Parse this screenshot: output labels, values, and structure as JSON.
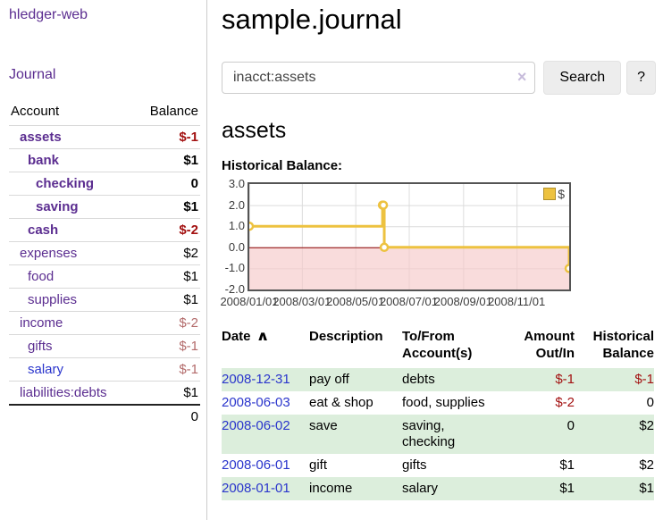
{
  "colors": {
    "link_purple": "#5b2d90",
    "link_blue": "#2a35cc",
    "negative_strong": "#a31111",
    "negative_muted": "#b36b6b",
    "row_stripe_green": "#dceedc",
    "chart_line_gold": "#edc240",
    "chart_zero_line": "#8b0000",
    "chart_negative_fill": "#f6caca",
    "chart_grid": "#dcdcdc"
  },
  "sidebar": {
    "brand": "hledger-web",
    "journal_link": "Journal",
    "accounts": {
      "header": {
        "account": "Account",
        "balance": "Balance"
      },
      "rows": [
        {
          "name": "assets",
          "balance": "$-1",
          "indent": 1,
          "bold": true,
          "name_style": "purple",
          "balance_style": "negative_strong"
        },
        {
          "name": "bank",
          "balance": "$1",
          "indent": 2,
          "bold": true,
          "name_style": "purple",
          "balance_style": "normal"
        },
        {
          "name": "checking",
          "balance": "0",
          "indent": 3,
          "bold": true,
          "name_style": "purple",
          "balance_style": "normal"
        },
        {
          "name": "saving",
          "balance": "$1",
          "indent": 3,
          "bold": true,
          "name_style": "purple",
          "balance_style": "normal"
        },
        {
          "name": "cash",
          "balance": "$-2",
          "indent": 2,
          "bold": true,
          "name_style": "purple",
          "balance_style": "negative_strong"
        },
        {
          "name": "expenses",
          "balance": "$2",
          "indent": 1,
          "bold": false,
          "name_style": "purple",
          "balance_style": "normal"
        },
        {
          "name": "food",
          "balance": "$1",
          "indent": 2,
          "bold": false,
          "name_style": "purple",
          "balance_style": "normal"
        },
        {
          "name": "supplies",
          "balance": "$1",
          "indent": 2,
          "bold": false,
          "name_style": "purple",
          "balance_style": "normal"
        },
        {
          "name": "income",
          "balance": "$-2",
          "indent": 1,
          "bold": false,
          "name_style": "purple",
          "balance_style": "negative_muted"
        },
        {
          "name": "gifts",
          "balance": "$-1",
          "indent": 2,
          "bold": false,
          "name_style": "purple",
          "balance_style": "negative_muted"
        },
        {
          "name": "salary",
          "balance": "$-1",
          "indent": 2,
          "bold": false,
          "name_style": "blue",
          "balance_style": "negative_muted"
        },
        {
          "name": "liabilities:debts",
          "balance": "$1",
          "indent": 1,
          "bold": false,
          "name_style": "purple",
          "balance_style": "normal"
        }
      ],
      "total": "0"
    }
  },
  "main": {
    "title": "sample.journal",
    "search": {
      "value": "inacct:assets",
      "clear_icon": "×",
      "search_button": "Search",
      "help_button": "?"
    },
    "account_heading": "assets",
    "section_label": "Historical Balance:"
  },
  "chart_data": {
    "type": "line",
    "step": true,
    "title": "Historical Balance",
    "xlabel": "",
    "ylabel": "",
    "x_unit": "days since 2008/01/01",
    "xlim": [
      0,
      365
    ],
    "ylim": [
      -2,
      3
    ],
    "grid": true,
    "zero_line": true,
    "negative_region_shaded": true,
    "legend_position": "top-right",
    "series": [
      {
        "name": "$",
        "points": [
          [
            0,
            1
          ],
          [
            152,
            2
          ],
          [
            153,
            2
          ],
          [
            154,
            0
          ],
          [
            365,
            -1
          ]
        ]
      }
    ],
    "x_ticks": [
      {
        "pos": 0,
        "label": "2008/01/01"
      },
      {
        "pos": 60,
        "label": "2008/03/01"
      },
      {
        "pos": 121,
        "label": "2008/05/01"
      },
      {
        "pos": 182,
        "label": "2008/07/01"
      },
      {
        "pos": 244,
        "label": "2008/09/01"
      },
      {
        "pos": 305,
        "label": "2008/11/01"
      }
    ],
    "y_ticks": [
      {
        "pos": 3,
        "label": "3.0"
      },
      {
        "pos": 2,
        "label": "2.0"
      },
      {
        "pos": 1,
        "label": "1.0"
      },
      {
        "pos": 0,
        "label": "0.0"
      },
      {
        "pos": -1,
        "label": "-1.0"
      },
      {
        "pos": -2,
        "label": "-2.0"
      }
    ],
    "legend": "$"
  },
  "register": {
    "sort_icon": "∧",
    "headers": [
      {
        "line1": "Date",
        "line2": "",
        "align": "left",
        "sortable": true
      },
      {
        "line1": "Description",
        "line2": "",
        "align": "left",
        "sortable": false
      },
      {
        "line1": "To/From",
        "line2": "Account(s)",
        "align": "left",
        "sortable": false
      },
      {
        "line1": "Amount",
        "line2": "Out/In",
        "align": "right",
        "sortable": false
      },
      {
        "line1": "Historical",
        "line2": "Balance",
        "align": "right",
        "sortable": false
      }
    ],
    "rows": [
      {
        "date": "2008-12-31",
        "description": "pay off",
        "accounts": "debts",
        "amount": "$-1",
        "amount_negative": true,
        "balance": "$-1",
        "balance_negative": true
      },
      {
        "date": "2008-06-03",
        "description": "eat & shop",
        "accounts": "food, supplies",
        "amount": "$-2",
        "amount_negative": true,
        "balance": "0",
        "balance_negative": false
      },
      {
        "date": "2008-06-02",
        "description": "save",
        "accounts": "saving,\nchecking",
        "amount": "0",
        "amount_negative": false,
        "balance": "$2",
        "balance_negative": false
      },
      {
        "date": "2008-06-01",
        "description": "gift",
        "accounts": "gifts",
        "amount": "$1",
        "amount_negative": false,
        "balance": "$2",
        "balance_negative": false
      },
      {
        "date": "2008-01-01",
        "description": "income",
        "accounts": "salary",
        "amount": "$1",
        "amount_negative": false,
        "balance": "$1",
        "balance_negative": false
      }
    ]
  }
}
